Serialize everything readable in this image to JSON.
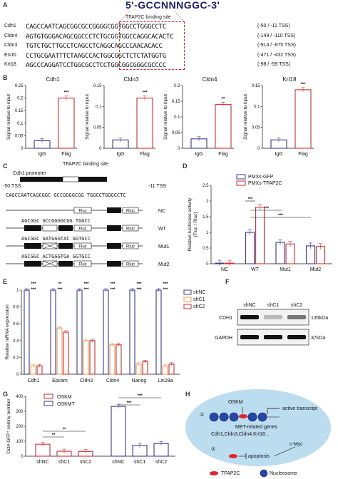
{
  "panels": {
    "A": {
      "letter": "A",
      "motif": "5'-GCCNNNGGC-3'",
      "site_label": "TFAP2C binding site",
      "rows": [
        {
          "gene": "Cdh1",
          "seq": "CAGCCAATCAGCGGCGCCGGGGCGGTGGCCTGGGCCTC",
          "pos": "(-50 / -11 TSS)"
        },
        {
          "gene": "Cldn4",
          "seq": "AGTGTGGGACAGCGGCCCTCTGCGGTGGCCAGGCACACTC",
          "pos": "(-149 / -110 TSS)"
        },
        {
          "gene": "Cldn3",
          "seq": "TGTCTGCTTGCCTCAGCCTCAGGCAGCCCAACACACC",
          "pos": "(-914 / -875 TSS)"
        },
        {
          "gene": "Esrrb",
          "seq": "CCTGCGAATTTCTAAGCCACTGGCGGCTCTCTATGGTG",
          "pos": "(-471 / -432 TSS)"
        },
        {
          "gene": "Krt18",
          "seq": "AGCCCAGGATCCTGGCGCCTCCTGGCGGCGGGCGCCCC",
          "pos": "(-98 / -59 TSS)"
        }
      ]
    },
    "B": {
      "letter": "B",
      "ylabel": "Signal relative to input",
      "sig": "***",
      "sig2": "**"
    },
    "C": {
      "letter": "C",
      "site_label": "TFAP2C binding site",
      "promoter_label": "Cdh1 promoter",
      "tss_left": "-50 TSS",
      "tss_right": "-11 TSS",
      "seq": "CAGCCAATCAGCGGC GCCGGGGCGG TGGCCTGGGCCTC",
      "constructs": [
        {
          "name": "NC",
          "seq": ""
        },
        {
          "name": "WT",
          "seq": "AGCGGC GCCGGGGCGG TGGCC"
        },
        {
          "name": "Mut1",
          "seq": "AGCGGC GATGGGTAC GGTGCC"
        },
        {
          "name": "Mut2",
          "seq": "AGCGGC ACTGGGTGA GGTGCC"
        }
      ],
      "fluc": "Fluc",
      "rluc": "Rluc"
    },
    "D": {
      "letter": "D",
      "ylabel": "Relative luciferase activity (Fluc / Rluc)",
      "ylabel1": "Relative luciferase activity",
      "ylabel2": "(Fluc / Rluc)",
      "sig": "***"
    },
    "E": {
      "letter": "E",
      "ylabel": "Relative mRNA expression",
      "sig3": "***",
      "sig2": "**"
    },
    "F": {
      "letter": "F",
      "lanes": [
        "shNC",
        "shC1",
        "shC2"
      ],
      "rows": [
        {
          "protein": "CDH1",
          "size": "135kDa"
        },
        {
          "protein": "GAPDH",
          "size": "37kDa"
        }
      ]
    },
    "G": {
      "letter": "G",
      "ylabel": "Oct4-GFP⁺ colony number",
      "sig3": "***",
      "sig2": "**"
    },
    "H": {
      "letter": "H",
      "oskm": "OSKM",
      "active": "active transcript",
      "met": "MET-related genes",
      "genes": "Cdh1,Cldn3,Cldn4,Krt18...",
      "cmyc": "c-Myc",
      "apoptosis": "apoptosis",
      "num1": "①",
      "num2": "②",
      "legend_tfap2c": "TFAP2C",
      "legend_nucleosome": "Nucleosome"
    }
  },
  "colors": {
    "red": "#e0262a",
    "blue": "#3b3a9b",
    "orange": "#f39c4a",
    "yellow": "#d8a300",
    "green": "#2e9c3c",
    "seq_blue": "#2d6fcf"
  },
  "chart_data": [
    {
      "id": "B-Cdh1",
      "type": "bar",
      "title": "Cdh1",
      "categories": [
        "IgG",
        "Flag"
      ],
      "values": [
        0.03,
        0.2
      ],
      "ylim": [
        0,
        0.25
      ],
      "yticks": [
        0.0,
        0.05,
        0.1,
        0.15,
        0.2,
        0.25
      ],
      "sig": "***"
    },
    {
      "id": "B-Cldn3",
      "type": "bar",
      "title": "Cldn3",
      "categories": [
        "IgG",
        "Flag"
      ],
      "values": [
        0.02,
        0.12
      ],
      "ylim": [
        0,
        0.15
      ],
      "yticks": [
        0.0,
        0.05,
        0.1,
        0.15
      ],
      "sig": "***"
    },
    {
      "id": "B-Cldn4",
      "type": "bar",
      "title": "Cldn4",
      "categories": [
        "IgG",
        "Flag"
      ],
      "values": [
        0.03,
        0.14
      ],
      "ylim": [
        0,
        0.2
      ],
      "yticks": [
        0.0,
        0.05,
        0.1,
        0.15,
        0.2
      ],
      "sig": "**"
    },
    {
      "id": "B-Krt18",
      "type": "bar",
      "title": "Krt18",
      "categories": [
        "IgG",
        "Flag"
      ],
      "values": [
        0.02,
        0.14
      ],
      "ylim": [
        0,
        0.15
      ],
      "yticks": [
        0.0,
        0.05,
        0.1,
        0.15
      ],
      "sig": "***"
    },
    {
      "id": "D",
      "type": "bar",
      "categories": [
        "NC",
        "WT",
        "Mut1",
        "Mut2"
      ],
      "series": [
        {
          "name": "PMXs-GFP",
          "values": [
            0.02,
            1.0,
            0.68,
            0.57
          ]
        },
        {
          "name": "PMXs-TFAP2C",
          "values": [
            0.02,
            1.8,
            0.63,
            0.55
          ]
        }
      ],
      "ylim": [
        0,
        2.5
      ],
      "yticks": [
        0.0,
        0.5,
        1.0,
        1.5,
        2.0,
        2.5
      ],
      "legend": "top-right"
    },
    {
      "id": "E",
      "type": "bar",
      "categories": [
        "Cdh1",
        "Epcam",
        "Cldn3",
        "Cldn4",
        "Nanog",
        "Lin28a"
      ],
      "series": [
        {
          "name": "shNC",
          "values": [
            1.0,
            1.0,
            1.0,
            1.0,
            1.0,
            1.0
          ]
        },
        {
          "name": "shC1",
          "values": [
            0.1,
            0.55,
            0.4,
            0.35,
            0.12,
            0.1
          ]
        },
        {
          "name": "shC2",
          "values": [
            0.1,
            0.5,
            0.4,
            0.35,
            0.15,
            0.12
          ]
        }
      ],
      "ylim": [
        0,
        1.0
      ],
      "yticks": [
        0.0,
        0.2,
        0.4,
        0.6,
        0.8,
        1.0
      ],
      "legend": "top-right"
    },
    {
      "id": "G",
      "type": "bar",
      "groups": [
        {
          "name": "OSKM",
          "categories": [
            "shNC",
            "shC1",
            "shC2"
          ],
          "values": [
            80,
            33,
            32
          ]
        },
        {
          "name": "OSKMT",
          "categories": [
            "shNC",
            "shC1",
            "shC2"
          ],
          "values": [
            333,
            72,
            85
          ]
        }
      ],
      "ylim": [
        0,
        400
      ],
      "yticks": [
        0,
        100,
        200,
        300,
        400
      ],
      "legend": "top-left"
    }
  ]
}
